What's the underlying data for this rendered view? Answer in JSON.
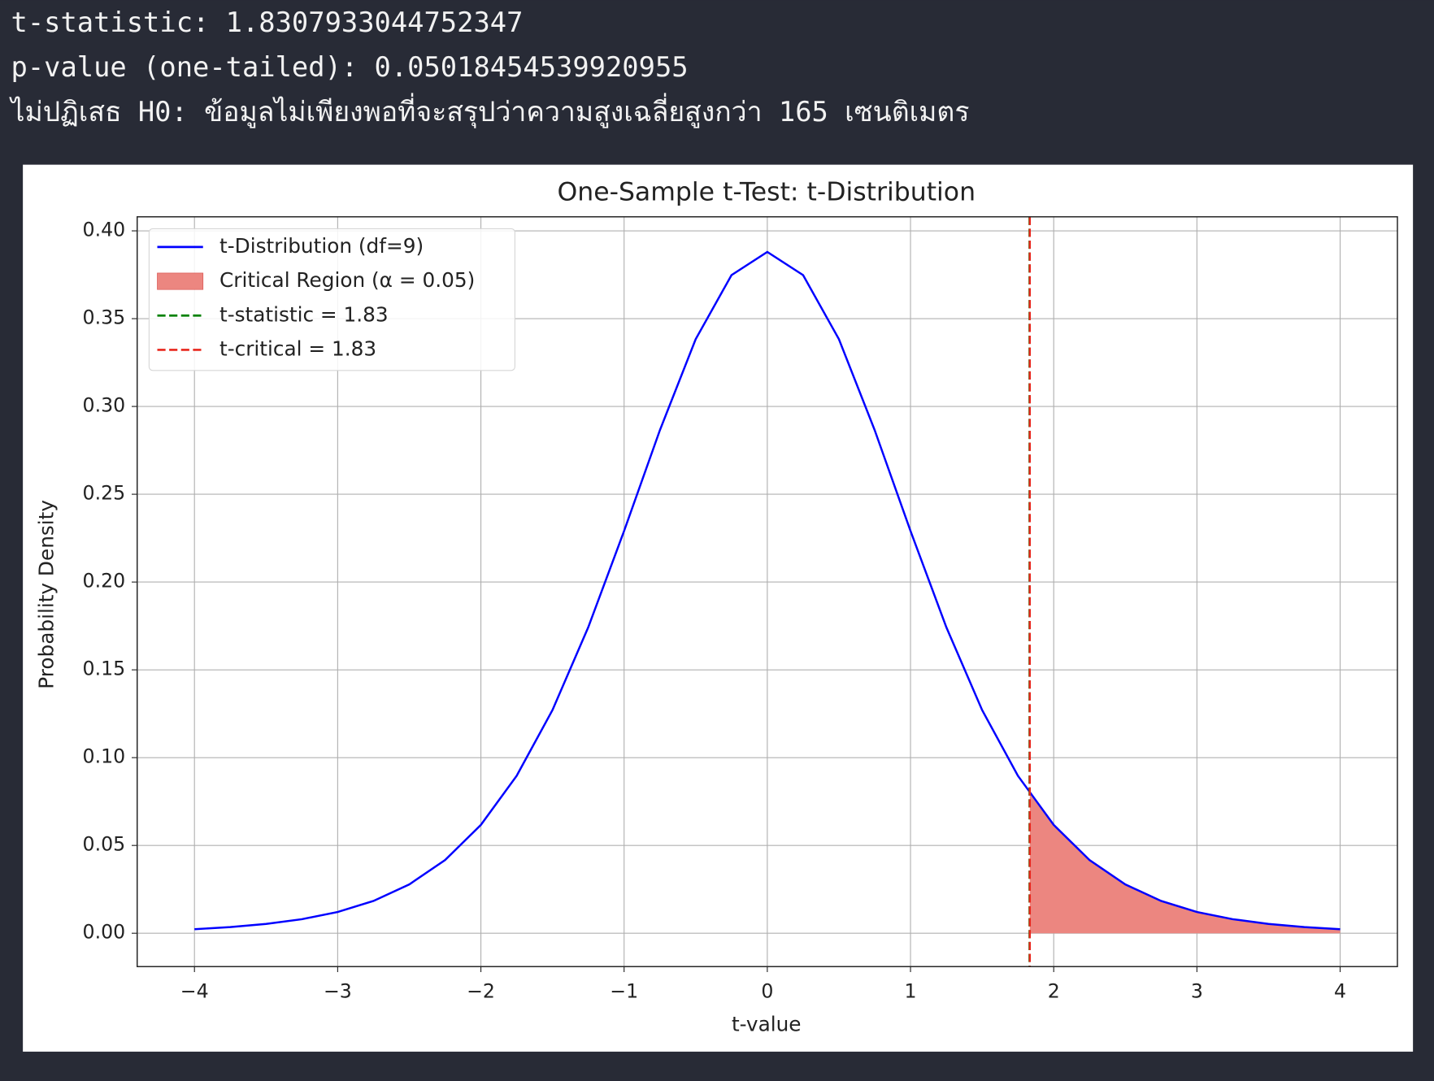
{
  "output": {
    "lines": [
      "t-statistic: 1.8307933044752347",
      "p-value (one-tailed): 0.05018454539920955",
      "ไม่ปฏิเสธ H0: ข้อมูลไม่เพียงพอที่จะสรุปว่าความสูงเฉลี่ยสูงกว่า 165 เซนติเมตร"
    ]
  },
  "chart_data": {
    "type": "line",
    "title": "One-Sample t-Test: t-Distribution",
    "xlabel": "t-value",
    "ylabel": "Probability Density",
    "x": [
      -4,
      -3.75,
      -3.5,
      -3.25,
      -3,
      -2.75,
      -2.5,
      -2.25,
      -2,
      -1.75,
      -1.5,
      -1.25,
      -1,
      -0.75,
      -0.5,
      -0.25,
      0,
      0.25,
      0.5,
      0.75,
      1,
      1.25,
      1.5,
      1.75,
      2,
      2.25,
      2.5,
      2.75,
      3,
      3.25,
      3.5,
      3.75,
      4
    ],
    "series": [
      {
        "name": "t-Distribution (df=9)",
        "color": "#0000ff",
        "values": [
          0.0023,
          0.0035,
          0.0053,
          0.008,
          0.0121,
          0.0184,
          0.0278,
          0.0417,
          0.0617,
          0.0897,
          0.1271,
          0.1743,
          0.2291,
          0.2865,
          0.3383,
          0.3748,
          0.388,
          0.3748,
          0.3383,
          0.2865,
          0.2291,
          0.1743,
          0.1271,
          0.0897,
          0.0617,
          0.0417,
          0.0278,
          0.0184,
          0.0121,
          0.008,
          0.0053,
          0.0035,
          0.0023
        ]
      }
    ],
    "fill": {
      "name": "Critical Region (α = 0.05)",
      "color": "#ec8680",
      "x": [
        1.8331,
        2,
        2.25,
        2.5,
        2.75,
        3,
        3.25,
        3.5,
        3.75,
        4
      ],
      "values": [
        0.0796,
        0.0617,
        0.0417,
        0.0278,
        0.0184,
        0.0121,
        0.008,
        0.0053,
        0.0035,
        0.0023
      ]
    },
    "vlines": [
      {
        "name": "t-statistic = 1.83",
        "color": "#008000",
        "x": 1.8307933044752347
      },
      {
        "name": "t-critical = 1.83",
        "color": "#e8261c",
        "x": 1.8331
      }
    ],
    "xlim": [
      -4.4,
      4.4
    ],
    "ylim": [
      -0.019,
      0.408
    ],
    "xticks": [
      {
        "value": -4,
        "label": "−4"
      },
      {
        "value": -3,
        "label": "−3"
      },
      {
        "value": -2,
        "label": "−2"
      },
      {
        "value": -1,
        "label": "−1"
      },
      0,
      1,
      2,
      3,
      4
    ],
    "yticks": [
      {
        "value": 0,
        "label": "0.00"
      },
      {
        "value": 0.05,
        "label": "0.05"
      },
      {
        "value": 0.1,
        "label": "0.10"
      },
      {
        "value": 0.15,
        "label": "0.15"
      },
      {
        "value": 0.2,
        "label": "0.20"
      },
      {
        "value": 0.25,
        "label": "0.25"
      },
      {
        "value": 0.3,
        "label": "0.30"
      },
      {
        "value": 0.35,
        "label": "0.35"
      },
      {
        "value": 0.4,
        "label": "0.40"
      }
    ],
    "grid": true,
    "legend": "upper left"
  }
}
